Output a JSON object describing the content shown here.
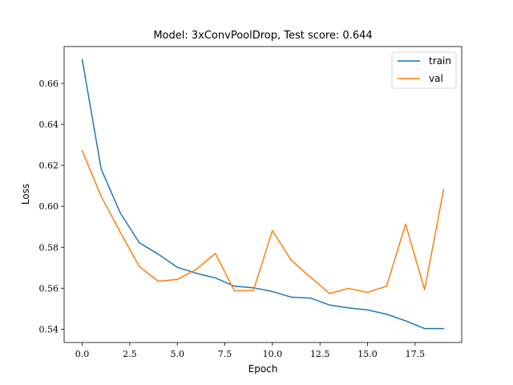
{
  "chart_data": {
    "type": "line",
    "title": "Model:  3xConvPoolDrop, Test score:  0.644",
    "xlabel": "Epoch",
    "ylabel": "Loss",
    "xlim": [
      -0.95,
      19.95
    ],
    "ylim": [
      0.5335,
      0.678
    ],
    "xticks": [
      0,
      2.5,
      5,
      7.5,
      10,
      12.5,
      15,
      17.5
    ],
    "xtick_labels": [
      "0.0",
      "2.5",
      "5.0",
      "7.5",
      "10.0",
      "12.5",
      "15.0",
      "17.5"
    ],
    "yticks": [
      0.54,
      0.56,
      0.58,
      0.6,
      0.62,
      0.64,
      0.66
    ],
    "ytick_labels": [
      "0.54",
      "0.56",
      "0.58",
      "0.60",
      "0.62",
      "0.64",
      "0.66"
    ],
    "legend_position": "top-right",
    "x": [
      0,
      1,
      2,
      3,
      4,
      5,
      6,
      7,
      8,
      9,
      10,
      11,
      12,
      13,
      14,
      15,
      16,
      17,
      18,
      19
    ],
    "series": [
      {
        "name": "train",
        "color": "#1f77b4",
        "values": [
          0.6717,
          0.6181,
          0.5968,
          0.5822,
          0.5766,
          0.5702,
          0.5673,
          0.565,
          0.561,
          0.5602,
          0.5584,
          0.5556,
          0.5552,
          0.5518,
          0.5504,
          0.5494,
          0.5473,
          0.5441,
          0.5403,
          0.5403
        ]
      },
      {
        "name": "val",
        "color": "#ff7f0e",
        "values": [
          0.6271,
          0.6048,
          0.5874,
          0.5706,
          0.5634,
          0.5643,
          0.5692,
          0.577,
          0.5587,
          0.5589,
          0.5881,
          0.5735,
          0.5654,
          0.5574,
          0.5599,
          0.558,
          0.561,
          0.5913,
          0.5592,
          0.6081
        ]
      }
    ]
  }
}
